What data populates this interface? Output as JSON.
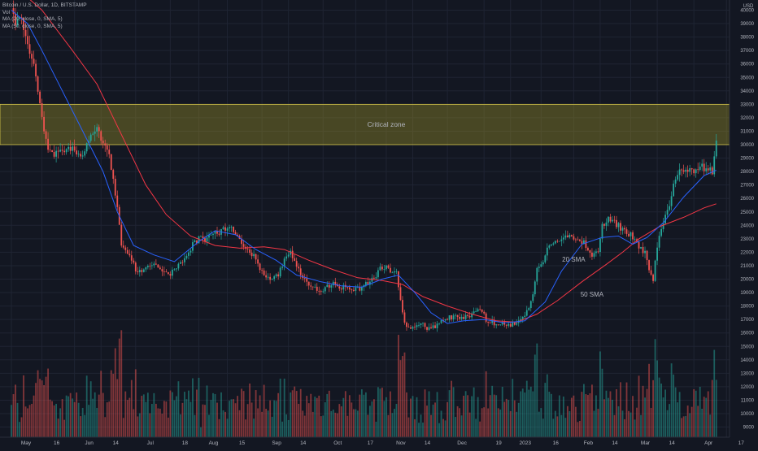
{
  "chart_data": {
    "type": "candlestick",
    "title": "Bitcoin / U.S. Dollar, 1D, BITSTAMP",
    "legend_lines": [
      "Vol",
      "MA (20, close, 0, SMA, 5)",
      "MA (50, close, 0, SMA, 5)"
    ],
    "currency_label": "USD",
    "y_ticks": [
      9000,
      10000,
      11000,
      12000,
      13000,
      14000,
      15000,
      16000,
      17000,
      18000,
      19000,
      20000,
      21000,
      22000,
      23000,
      24000,
      25000,
      26000,
      27000,
      28000,
      29000,
      30000,
      31000,
      32000,
      33000,
      34000,
      35000,
      36000,
      37000,
      38000,
      39000,
      40000
    ],
    "x_ticks": [
      {
        "label": "May",
        "day": 0
      },
      {
        "label": "16",
        "day": 15
      },
      {
        "label": "Jun",
        "day": 31
      },
      {
        "label": "14",
        "day": 44
      },
      {
        "label": "Jul",
        "day": 61
      },
      {
        "label": "18",
        "day": 78
      },
      {
        "label": "Aug",
        "day": 92
      },
      {
        "label": "15",
        "day": 106
      },
      {
        "label": "Sep",
        "day": 123
      },
      {
        "label": "14",
        "day": 136
      },
      {
        "label": "Oct",
        "day": 153
      },
      {
        "label": "17",
        "day": 169
      },
      {
        "label": "Nov",
        "day": 184
      },
      {
        "label": "14",
        "day": 197
      },
      {
        "label": "Dec",
        "day": 214
      },
      {
        "label": "19",
        "day": 232
      },
      {
        "label": "2023",
        "day": 245
      },
      {
        "label": "16",
        "day": 260
      },
      {
        "label": "Feb",
        "day": 276
      },
      {
        "label": "14",
        "day": 289
      },
      {
        "label": "Mar",
        "day": 304
      },
      {
        "label": "14",
        "day": 317
      },
      {
        "label": "Apr",
        "day": 335
      },
      {
        "label": "17",
        "day": 351
      }
    ],
    "critical_zone": {
      "label": "Critical zone",
      "low": 30000,
      "high": 33000
    },
    "sma20": {
      "label": "20 SMA",
      "color": "#2962ff",
      "points": [
        [
          0,
          40000
        ],
        [
          8,
          39000
        ],
        [
          15,
          37000
        ],
        [
          25,
          34000
        ],
        [
          35,
          31000
        ],
        [
          45,
          28000
        ],
        [
          52,
          25000
        ],
        [
          60,
          22500
        ],
        [
          70,
          21800
        ],
        [
          80,
          21300
        ],
        [
          92,
          22800
        ],
        [
          100,
          23600
        ],
        [
          110,
          23300
        ],
        [
          120,
          22200
        ],
        [
          130,
          21400
        ],
        [
          140,
          20300
        ],
        [
          152,
          19800
        ],
        [
          162,
          19500
        ],
        [
          172,
          19400
        ],
        [
          182,
          20000
        ],
        [
          190,
          20300
        ],
        [
          198,
          19000
        ],
        [
          206,
          17500
        ],
        [
          214,
          16700
        ],
        [
          222,
          16900
        ],
        [
          232,
          17000
        ],
        [
          242,
          16750
        ],
        [
          252,
          16900
        ],
        [
          262,
          18300
        ],
        [
          270,
          20600
        ],
        [
          280,
          22600
        ],
        [
          290,
          23100
        ],
        [
          298,
          23200
        ],
        [
          305,
          22600
        ],
        [
          312,
          23100
        ],
        [
          320,
          24200
        ],
        [
          330,
          26100
        ],
        [
          340,
          27700
        ],
        [
          346,
          28100
        ]
      ]
    },
    "sma50": {
      "label": "50 SMA",
      "color": "#f23645",
      "points": [
        [
          0,
          42000
        ],
        [
          15,
          40000
        ],
        [
          30,
          37000
        ],
        [
          42,
          34500
        ],
        [
          50,
          32000
        ],
        [
          58,
          29500
        ],
        [
          66,
          27000
        ],
        [
          76,
          24800
        ],
        [
          88,
          23200
        ],
        [
          100,
          22500
        ],
        [
          112,
          22300
        ],
        [
          124,
          22400
        ],
        [
          134,
          22200
        ],
        [
          146,
          21400
        ],
        [
          158,
          20700
        ],
        [
          170,
          20100
        ],
        [
          182,
          19900
        ],
        [
          192,
          19600
        ],
        [
          202,
          18700
        ],
        [
          214,
          18000
        ],
        [
          226,
          17400
        ],
        [
          238,
          16900
        ],
        [
          248,
          16800
        ],
        [
          258,
          17400
        ],
        [
          268,
          18400
        ],
        [
          280,
          19800
        ],
        [
          292,
          21100
        ],
        [
          300,
          22000
        ],
        [
          308,
          23000
        ],
        [
          318,
          23900
        ],
        [
          330,
          24600
        ],
        [
          340,
          25300
        ],
        [
          346,
          25600
        ]
      ]
    },
    "price_anchors": [
      [
        0,
        40000
      ],
      [
        2,
        38800
      ],
      [
        5,
        39200
      ],
      [
        8,
        37500
      ],
      [
        11,
        36000
      ],
      [
        14,
        33000
      ],
      [
        17,
        30200
      ],
      [
        20,
        29200
      ],
      [
        25,
        29500
      ],
      [
        30,
        29800
      ],
      [
        34,
        29000
      ],
      [
        38,
        30500
      ],
      [
        41,
        31300
      ],
      [
        45,
        30400
      ],
      [
        48,
        29200
      ],
      [
        51,
        26500
      ],
      [
        54,
        22500
      ],
      [
        57,
        21800
      ],
      [
        61,
        20800
      ],
      [
        65,
        20500
      ],
      [
        69,
        21200
      ],
      [
        73,
        20900
      ],
      [
        77,
        20200
      ],
      [
        81,
        20800
      ],
      [
        85,
        21600
      ],
      [
        89,
        22500
      ],
      [
        93,
        23200
      ],
      [
        96,
        22900
      ],
      [
        99,
        23600
      ],
      [
        102,
        23500
      ],
      [
        106,
        23900
      ],
      [
        109,
        23600
      ],
      [
        112,
        23000
      ],
      [
        115,
        22100
      ],
      [
        119,
        21700
      ],
      [
        123,
        20500
      ],
      [
        127,
        20000
      ],
      [
        131,
        20300
      ],
      [
        134,
        21300
      ],
      [
        137,
        21900
      ],
      [
        141,
        20600
      ],
      [
        145,
        19700
      ],
      [
        148,
        19400
      ],
      [
        151,
        19000
      ],
      [
        154,
        19300
      ],
      [
        157,
        19700
      ],
      [
        161,
        19500
      ],
      [
        164,
        19300
      ],
      [
        167,
        19200
      ],
      [
        171,
        19300
      ],
      [
        174,
        19600
      ],
      [
        178,
        20100
      ],
      [
        181,
        20700
      ],
      [
        184,
        20900
      ],
      [
        187,
        20600
      ],
      [
        189,
        20400
      ],
      [
        191,
        18500
      ],
      [
        193,
        16600
      ],
      [
        196,
        16400
      ],
      [
        199,
        16700
      ],
      [
        202,
        16600
      ],
      [
        205,
        16300
      ],
      [
        208,
        16500
      ],
      [
        211,
        16900
      ],
      [
        214,
        17100
      ],
      [
        217,
        17200
      ],
      [
        221,
        17100
      ],
      [
        225,
        17300
      ],
      [
        228,
        17600
      ],
      [
        230,
        17800
      ],
      [
        233,
        17000
      ],
      [
        236,
        16800
      ],
      [
        239,
        16600
      ],
      [
        242,
        16700
      ],
      [
        245,
        16600
      ],
      [
        248,
        16800
      ],
      [
        251,
        17200
      ],
      [
        254,
        17900
      ],
      [
        256,
        18900
      ],
      [
        258,
        20800
      ],
      [
        261,
        21100
      ],
      [
        264,
        22700
      ],
      [
        267,
        22900
      ],
      [
        270,
        23000
      ],
      [
        273,
        23200
      ],
      [
        276,
        23100
      ],
      [
        279,
        23000
      ],
      [
        282,
        22500
      ],
      [
        285,
        21800
      ],
      [
        288,
        22200
      ],
      [
        290,
        23900
      ],
      [
        293,
        24500
      ],
      [
        296,
        24300
      ],
      [
        299,
        23800
      ],
      [
        302,
        23400
      ],
      [
        305,
        23200
      ],
      [
        308,
        22400
      ],
      [
        311,
        21900
      ],
      [
        313,
        20500
      ],
      [
        315,
        20000
      ],
      [
        317,
        22500
      ],
      [
        320,
        24300
      ],
      [
        323,
        25500
      ],
      [
        326,
        27500
      ],
      [
        329,
        28100
      ],
      [
        332,
        28200
      ],
      [
        335,
        27800
      ],
      [
        338,
        28400
      ],
      [
        341,
        28100
      ],
      [
        344,
        28000
      ],
      [
        346,
        30300
      ]
    ],
    "volume_scale_note": "relative"
  }
}
